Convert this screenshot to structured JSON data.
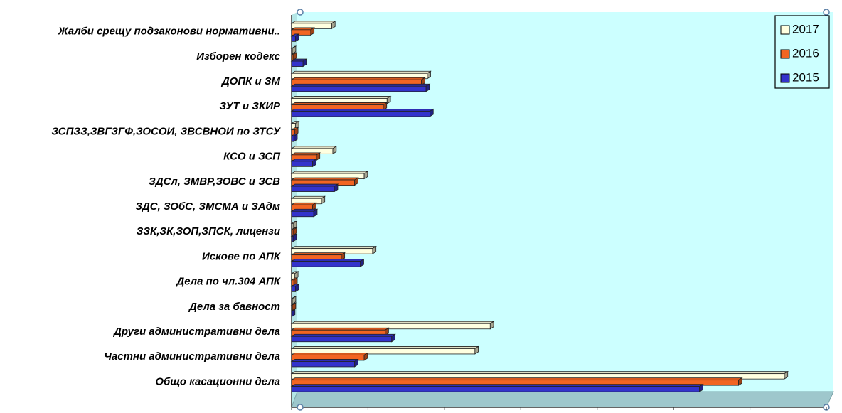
{
  "chart_data": {
    "type": "bar",
    "orientation": "horizontal",
    "categories": [
      "Жалби срещу подзаконови нормативни..",
      "Изборен кодекс",
      "ДОПК и ЗМ",
      "ЗУТ и ЗКИР",
      "ЗСПЗЗ,ЗВГЗГФ,ЗОСОИ, ЗВСВНОИ по ЗТСУ",
      "КСО и ЗСП",
      "ЗДСл, ЗМВР,ЗОВС и ЗСВ",
      "ЗДС, ЗОбС,  ЗМСМА и  ЗАдм",
      "ЗЗК,ЗК,ЗОП,ЗПСК,      лицензи",
      "Искове по АПК",
      "Дела по чл.304 АПК",
      "Дела за бавност",
      "Други  административни дела",
      "Частни административни дела",
      "Общо   касационни дела"
    ],
    "series": [
      {
        "name": "2017",
        "color": "#FFFFE0",
        "values": [
          105,
          2,
          355,
          250,
          10,
          108,
          190,
          78,
          4,
          212,
          8,
          2,
          520,
          480,
          1290
        ]
      },
      {
        "name": "2016",
        "color": "#F26522",
        "values": [
          50,
          4,
          340,
          240,
          8,
          65,
          165,
          55,
          4,
          130,
          6,
          2,
          245,
          190,
          1170
        ]
      },
      {
        "name": "2015",
        "color": "#3333CC",
        "values": [
          10,
          30,
          352,
          362,
          6,
          55,
          112,
          58,
          4,
          180,
          10,
          0,
          262,
          165,
          1068
        ]
      }
    ],
    "legend_order": [
      "2017",
      "2016",
      "2015"
    ],
    "xlim": [
      0,
      1400
    ],
    "xticks": [
      "0",
      "200",
      "400",
      "600",
      "800",
      "1000",
      "1200",
      "1400"
    ],
    "legend_position": "top-right",
    "background_color": "#CCFFFF",
    "grid": false,
    "title": "",
    "xlabel": "",
    "ylabel": ""
  }
}
